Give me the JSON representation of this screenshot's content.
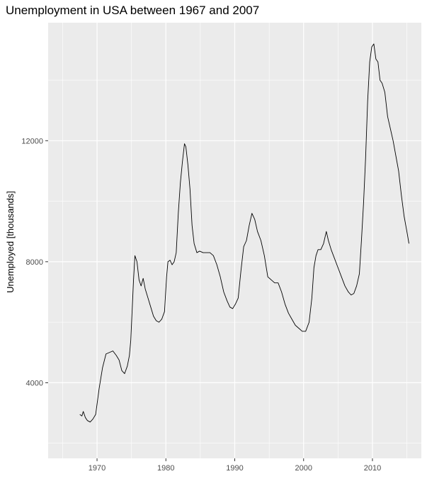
{
  "chart_data": {
    "type": "line",
    "title": "Unemployment in USA between 1967 and 2007",
    "xlabel": "",
    "ylabel": "Unemployed [thousands]",
    "xlim": [
      1962.9,
      2017.1
    ],
    "ylim": [
      1500,
      15900
    ],
    "x_ticks": [
      1970,
      1980,
      1990,
      2000,
      2010
    ],
    "y_ticks": [
      4000,
      8000,
      12000
    ],
    "grid": true,
    "legend": "none",
    "colors": {
      "panel": "#ebebeb",
      "grid": "#ffffff",
      "line": "#000000",
      "tick": "#4d4d4d"
    },
    "series": [
      {
        "x": [
          1967.5,
          1967.8,
          1968.0,
          1968.3,
          1968.6,
          1969.0,
          1969.4,
          1969.8,
          1970.3,
          1970.8,
          1971.3,
          1971.8,
          1972.3,
          1972.8,
          1973.2,
          1973.6,
          1974.0,
          1974.4,
          1974.7,
          1974.9,
          1975.1,
          1975.3,
          1975.5,
          1975.8,
          1976.1,
          1976.4,
          1976.7,
          1977.0,
          1977.4,
          1977.8,
          1978.2,
          1978.6,
          1979.0,
          1979.4,
          1979.8,
          1980.1,
          1980.3,
          1980.6,
          1980.9,
          1981.2,
          1981.5,
          1981.8,
          1982.1,
          1982.4,
          1982.7,
          1982.9,
          1983.2,
          1983.5,
          1983.8,
          1984.1,
          1984.5,
          1984.9,
          1985.4,
          1985.9,
          1986.4,
          1986.9,
          1987.4,
          1987.9,
          1988.4,
          1988.9,
          1989.3,
          1989.7,
          1990.1,
          1990.5,
          1990.9,
          1991.3,
          1991.7,
          1992.1,
          1992.5,
          1992.9,
          1993.3,
          1993.8,
          1994.3,
          1994.8,
          1995.3,
          1995.8,
          1996.3,
          1996.8,
          1997.3,
          1997.8,
          1998.3,
          1998.8,
          1999.3,
          1999.8,
          2000.3,
          2000.8,
          2001.2,
          2001.5,
          2001.8,
          2002.1,
          2002.5,
          2002.9,
          2003.3,
          2003.6,
          2004.0,
          2004.5,
          2005.0,
          2005.5,
          2006.0,
          2006.5,
          2006.9,
          2007.3,
          2007.7,
          2008.1,
          2008.4,
          2008.7,
          2009.0,
          2009.3,
          2009.6,
          2009.9,
          2010.2,
          2010.5,
          2010.8,
          2011.1,
          2011.4,
          2011.8,
          2012.2,
          2012.6,
          2013.0,
          2013.4,
          2013.8,
          2014.2,
          2014.6,
          2015.0,
          2015.3
        ],
        "y": [
          2950,
          2900,
          3050,
          2850,
          2750,
          2700,
          2800,
          2950,
          3800,
          4500,
          4950,
          5000,
          5050,
          4900,
          4750,
          4400,
          4300,
          4550,
          4900,
          5400,
          6400,
          7400,
          8200,
          8000,
          7400,
          7200,
          7450,
          7100,
          6800,
          6500,
          6200,
          6050,
          6000,
          6100,
          6350,
          7500,
          8000,
          8050,
          7900,
          8000,
          8300,
          9600,
          10600,
          11300,
          11900,
          11800,
          11200,
          10400,
          9200,
          8600,
          8300,
          8350,
          8300,
          8300,
          8300,
          8200,
          7900,
          7500,
          7000,
          6700,
          6500,
          6450,
          6600,
          6800,
          7700,
          8500,
          8700,
          9200,
          9600,
          9400,
          9000,
          8700,
          8200,
          7500,
          7400,
          7300,
          7300,
          7000,
          6600,
          6300,
          6100,
          5900,
          5800,
          5700,
          5700,
          6000,
          6800,
          7800,
          8200,
          8400,
          8400,
          8600,
          9000,
          8700,
          8400,
          8100,
          7800,
          7500,
          7200,
          7000,
          6900,
          6950,
          7200,
          7600,
          8700,
          9900,
          11400,
          13300,
          14600,
          15100,
          15200,
          14700,
          14600,
          14000,
          13900,
          13600,
          12800,
          12400,
          12000,
          11500,
          11000,
          10200,
          9500,
          9000,
          8600
        ]
      }
    ]
  }
}
